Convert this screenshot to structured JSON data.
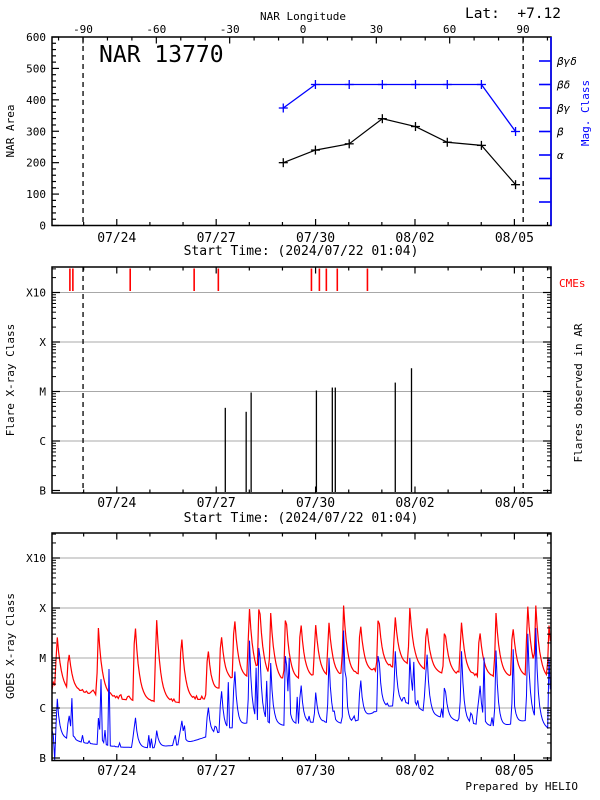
{
  "page": {
    "bg": "#ffffff",
    "credit": "Prepared by HELIO"
  },
  "colors": {
    "black": "#000000",
    "blue": "#0000ff",
    "red": "#ff0000",
    "grid": "#a8a8a8"
  },
  "time_axis": {
    "start_label": "Start Time: (2024/07/22 01:04)",
    "span_days": 15.06,
    "day_tick_start_offset": 0.955,
    "major_tick_days": [
      1.955,
      4.955,
      7.955,
      10.955,
      13.955
    ],
    "major_tick_labels": [
      "07/24",
      "07/27",
      "07/30",
      "08/02",
      "08/05"
    ]
  },
  "chart_data": [
    {
      "id": "nar-area-panel",
      "type": "line",
      "title": "NAR 13770",
      "lat_label": "Lat:  +7.12",
      "top_axis": {
        "label": "NAR Longitude",
        "major_ticks": [
          -90,
          -60,
          -30,
          0,
          30,
          60,
          90
        ],
        "minor_step_deg": 10,
        "minor_range_deg": [
          -100,
          100
        ]
      },
      "limb_lines_days": [
        0.937,
        14.22
      ],
      "ylabel": "NAR Area",
      "ylim": [
        0,
        600
      ],
      "yticks": [
        0,
        100,
        200,
        300,
        400,
        500,
        600
      ],
      "y_minor_step": 20,
      "right_axis": {
        "label": "Mag. Class",
        "tick_labels": [
          "βγδ",
          "βδ",
          "βγ",
          "β",
          "α",
          "",
          ""
        ]
      },
      "series": [
        {
          "name": "nar-area",
          "color": "#000000",
          "marker": "plus",
          "days": [
            6.98,
            7.95,
            8.97,
            9.97,
            10.97,
            11.93,
            12.96,
            13.99
          ],
          "dates": [
            "07/29",
            "07/30",
            "07/31",
            "08/01",
            "08/02",
            "08/03",
            "08/04",
            "08/05"
          ],
          "values": [
            200,
            240,
            260,
            340,
            315,
            265,
            255,
            130
          ]
        },
        {
          "name": "mag-class",
          "color": "#0000ff",
          "marker": "plus",
          "days": [
            6.98,
            7.95,
            8.97,
            9.97,
            10.97,
            11.93,
            12.96,
            13.99
          ],
          "dates": [
            "07/29",
            "07/30",
            "07/31",
            "08/01",
            "08/02",
            "08/03",
            "08/04",
            "08/05"
          ],
          "values": [
            "βγ",
            "βδ",
            "βδ",
            "βδ",
            "βδ",
            "βδ",
            "βδ",
            "β"
          ]
        }
      ]
    },
    {
      "id": "flare-panel",
      "type": "event-bars",
      "ylabel": "Flare X-ray Class",
      "right_label": "Flares observed in AR",
      "cme_label": "CMEs",
      "yticks": [
        "X10",
        "X",
        "M",
        "C",
        "B"
      ],
      "limb_lines_days": [
        0.937,
        14.22
      ],
      "cmes": {
        "days": [
          0.54,
          0.63,
          2.36,
          4.29,
          5.02,
          7.83,
          8.07,
          8.28,
          8.61,
          9.52
        ],
        "dates": [
          "07/22 14:00",
          "07/22 16:00",
          "07/24 09:30",
          "07/26 08:00",
          "07/27 01:30",
          "07/29 21:00",
          "07/30 02:30",
          "07/30 08:00",
          "07/30 16:00",
          "07/31 13:30"
        ]
      },
      "flares": [
        {
          "day": 5.23,
          "date": "07/27 06:30",
          "class": "C4.7",
          "level": 1.67
        },
        {
          "day": 5.86,
          "date": "07/27 21:30",
          "class": "C3.9",
          "level": 1.59
        },
        {
          "day": 6.01,
          "date": "07/28 01:00",
          "class": "M1.0",
          "level": 1.98
        },
        {
          "day": 7.98,
          "date": "07/30 00:30",
          "class": "M1.0",
          "level": 2.02
        },
        {
          "day": 8.46,
          "date": "07/30 12:00",
          "class": "M1.2",
          "level": 2.08
        },
        {
          "day": 8.55,
          "date": "07/30 14:00",
          "class": "M1.2",
          "level": 2.08
        },
        {
          "day": 10.36,
          "date": "08/01 09:30",
          "class": "M1.5",
          "level": 2.18
        },
        {
          "day": 10.85,
          "date": "08/01 21:30",
          "class": "M3.0",
          "level": 2.47
        }
      ]
    },
    {
      "id": "goes-panel",
      "type": "line",
      "ylabel": "GOES X-ray Class",
      "yticks": [
        "X10",
        "X",
        "M",
        "C",
        "B"
      ],
      "step_days": 0.04,
      "seed": 987654321,
      "series": [
        {
          "name": "goes-long-red",
          "color": "#ff0000",
          "noise": 0.2,
          "rise_days": 0.06,
          "decay_days": 0.12,
          "baseline_keys": [
            [
              0,
              1.45
            ],
            [
              0.5,
              1.3
            ],
            [
              1,
              1.3
            ],
            [
              2,
              1.18
            ],
            [
              3,
              1.12
            ],
            [
              4,
              1.1
            ],
            [
              4.8,
              1.2
            ],
            [
              5.3,
              1.5
            ],
            [
              6,
              1.6
            ],
            [
              7,
              1.5
            ],
            [
              8,
              1.6
            ],
            [
              9,
              1.62
            ],
            [
              10,
              1.75
            ],
            [
              10.7,
              1.85
            ],
            [
              11.5,
              1.7
            ],
            [
              12.5,
              1.62
            ],
            [
              13.5,
              1.6
            ],
            [
              14.5,
              1.62
            ],
            [
              15.06,
              1.55
            ]
          ]
        },
        {
          "name": "goes-short-blue",
          "color": "#0000ff",
          "noise": 0.7,
          "dip": 1.6,
          "rise_days": 0.04,
          "decay_days": 0.07,
          "baseline_keys": [
            [
              0,
              0.45
            ],
            [
              1,
              0.3
            ],
            [
              2,
              0.22
            ],
            [
              3,
              0.2
            ],
            [
              4,
              0.28
            ],
            [
              5,
              0.5
            ],
            [
              6,
              0.72
            ],
            [
              7,
              0.65
            ],
            [
              8,
              0.72
            ],
            [
              9,
              0.68
            ],
            [
              10,
              1.0
            ],
            [
              10.7,
              1.1
            ],
            [
              11.5,
              0.85
            ],
            [
              12.5,
              0.7
            ],
            [
              13.5,
              0.62
            ],
            [
              14.5,
              0.78
            ],
            [
              15.06,
              0.55
            ]
          ]
        }
      ],
      "spikes": [
        [
          0.15,
          2.5,
          1.3
        ],
        [
          0.5,
          2.2,
          1.0
        ],
        [
          1.4,
          2.6,
          0.8
        ],
        [
          2.5,
          2.85,
          1.0
        ],
        [
          3.15,
          2.9,
          0.6
        ],
        [
          3.9,
          2.6,
          0.9
        ],
        [
          4.7,
          2.3,
          1.2
        ],
        [
          5.1,
          2.6,
          1.6
        ],
        [
          5.5,
          2.95,
          2.1
        ],
        [
          5.95,
          3.1,
          2.6
        ],
        [
          6.25,
          3.25,
          2.7
        ],
        [
          6.6,
          2.9,
          1.9
        ],
        [
          7.05,
          3.0,
          2.5
        ],
        [
          7.5,
          2.85,
          1.7
        ],
        [
          7.95,
          2.75,
          1.4
        ],
        [
          8.35,
          2.8,
          2.2
        ],
        [
          8.8,
          3.05,
          2.55
        ],
        [
          9.3,
          2.8,
          1.8
        ],
        [
          9.85,
          2.95,
          2.4
        ],
        [
          10.35,
          2.9,
          2.3
        ],
        [
          10.8,
          3.0,
          2.0
        ],
        [
          11.3,
          2.75,
          2.45
        ],
        [
          11.85,
          2.65,
          1.6
        ],
        [
          12.35,
          2.8,
          2.35
        ],
        [
          12.9,
          2.65,
          1.7
        ],
        [
          13.4,
          2.9,
          2.15
        ],
        [
          13.9,
          2.75,
          1.5
        ],
        [
          14.35,
          3.15,
          2.75
        ],
        [
          14.6,
          3.05,
          2.6
        ],
        [
          15.0,
          2.65,
          2.0
        ]
      ]
    }
  ]
}
